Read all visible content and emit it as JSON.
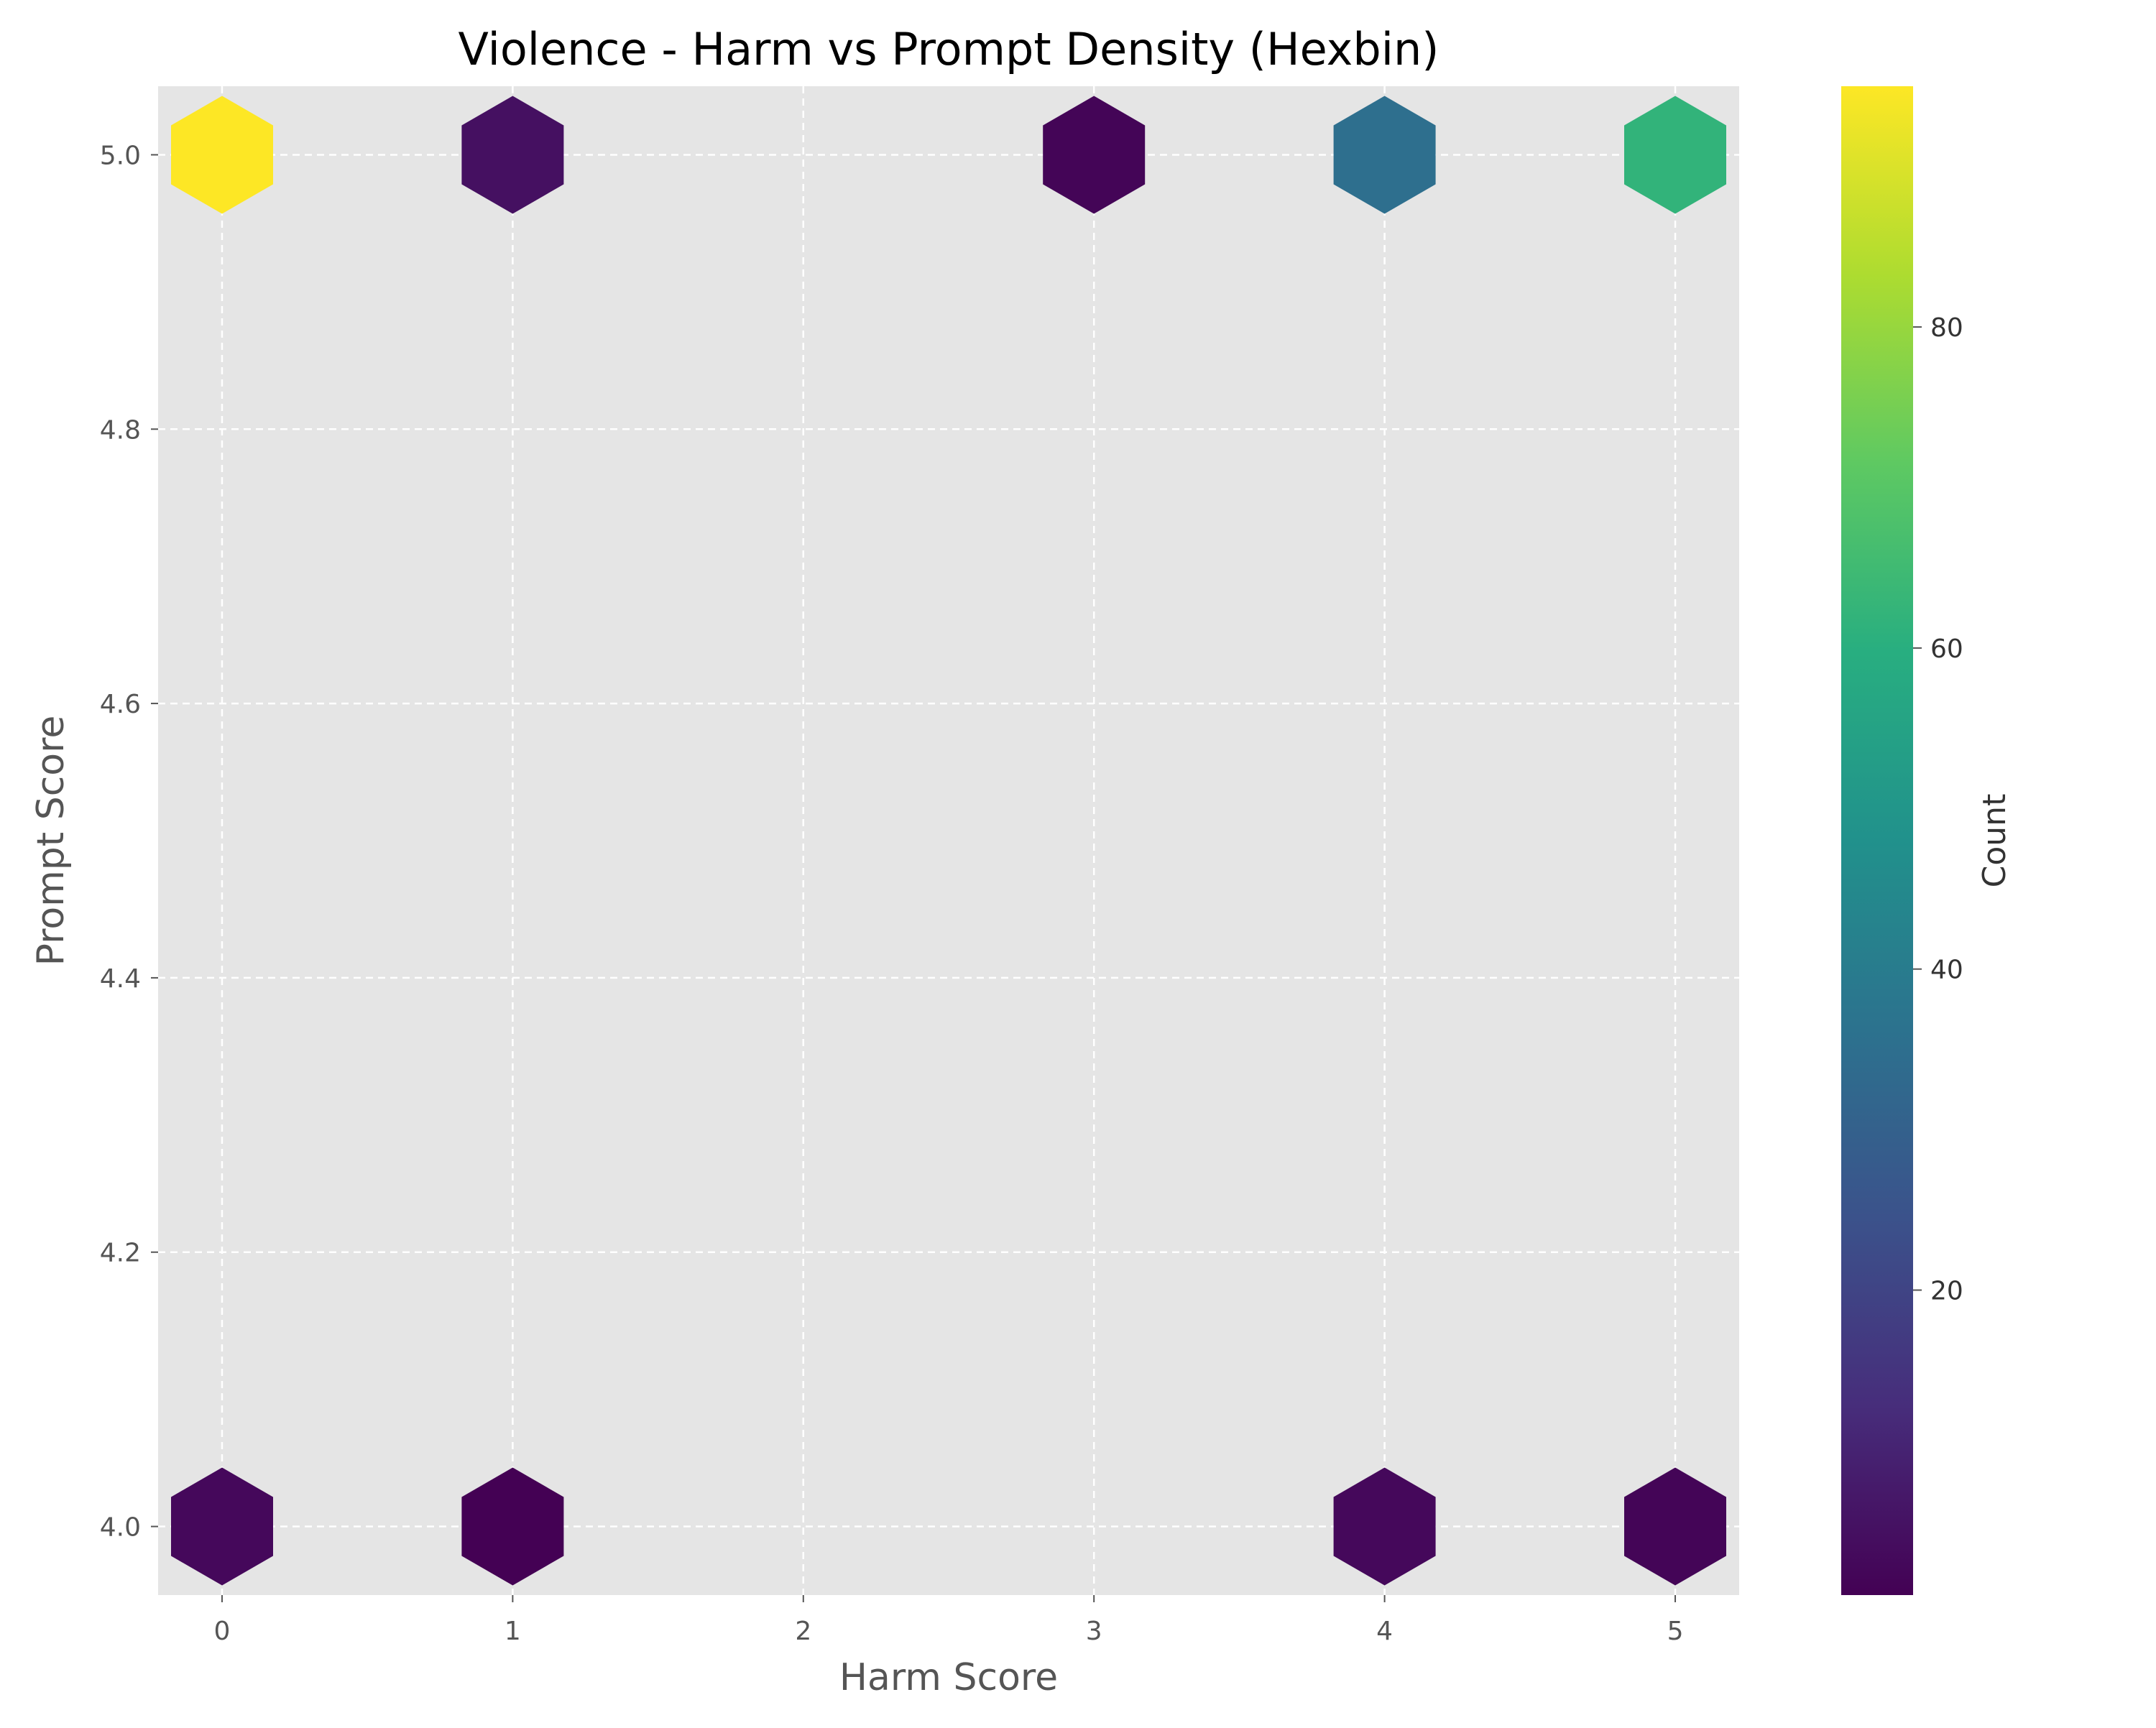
{
  "chart_data": {
    "type": "hexbin",
    "title": "Violence - Harm vs Prompt Density (Hexbin)",
    "xlabel": "Harm Score",
    "ylabel": "Prompt Score",
    "xlim": [
      -0.22,
      5.22
    ],
    "ylim": [
      3.95,
      5.05
    ],
    "x_ticks": [
      0,
      1,
      2,
      3,
      4,
      5
    ],
    "y_ticks": [
      4.0,
      4.2,
      4.4,
      4.6,
      4.8,
      5.0
    ],
    "y_tick_labels": [
      "4.0",
      "4.2",
      "4.4",
      "4.6",
      "4.8",
      "5.0"
    ],
    "grid": true,
    "grid_style": "dashed",
    "background": "#e5e5e5",
    "colormap": "viridis",
    "colorbar": {
      "label": "Count",
      "range": [
        1,
        95
      ],
      "ticks": [
        20,
        40,
        60,
        80
      ]
    },
    "bins": [
      {
        "x": 0,
        "y": 5.0,
        "count": 95
      },
      {
        "x": 1,
        "y": 5.0,
        "count": 5
      },
      {
        "x": 3,
        "y": 5.0,
        "count": 2
      },
      {
        "x": 4,
        "y": 5.0,
        "count": 35
      },
      {
        "x": 5,
        "y": 5.0,
        "count": 62
      },
      {
        "x": 0,
        "y": 4.0,
        "count": 3
      },
      {
        "x": 1,
        "y": 4.0,
        "count": 1
      },
      {
        "x": 4,
        "y": 4.0,
        "count": 3
      },
      {
        "x": 5,
        "y": 4.0,
        "count": 2
      }
    ]
  }
}
